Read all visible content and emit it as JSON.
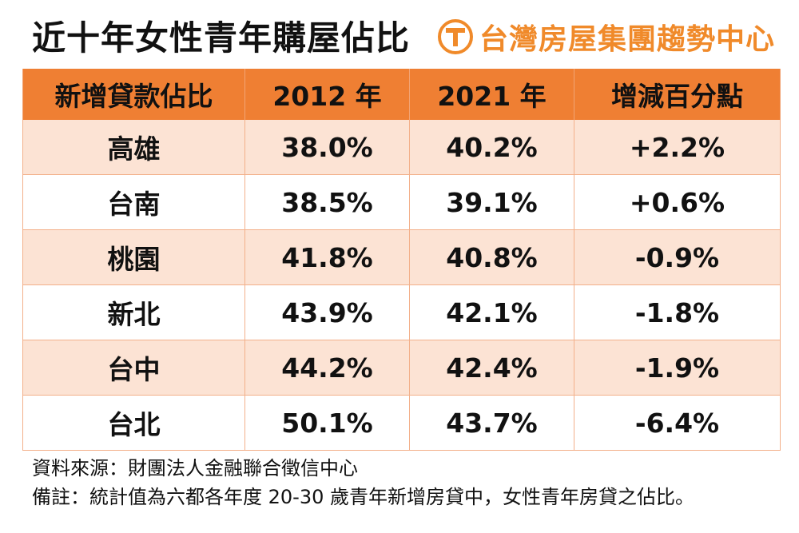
{
  "header": {
    "title": "近十年女性青年購屋佔比",
    "brand": "台灣房屋集團趨勢中心",
    "brand_icon": "t-circle-logo-icon",
    "brand_color": "#f08a2a"
  },
  "table": {
    "header_color": "#ef7f33",
    "stripe_color": "#fce3d4",
    "columns": [
      "新增貸款佔比",
      "2012 年",
      "2021 年",
      "增減百分點"
    ],
    "rows": [
      {
        "city": "高雄",
        "y2012": "38.0%",
        "y2021": "40.2%",
        "change": "+2.2%"
      },
      {
        "city": "台南",
        "y2012": "38.5%",
        "y2021": "39.1%",
        "change": "+0.6%"
      },
      {
        "city": "桃園",
        "y2012": "41.8%",
        "y2021": "40.8%",
        "change": "-0.9%"
      },
      {
        "city": "新北",
        "y2012": "43.9%",
        "y2021": "42.1%",
        "change": "-1.8%"
      },
      {
        "city": "台中",
        "y2012": "44.2%",
        "y2021": "42.4%",
        "change": "-1.9%"
      },
      {
        "city": "台北",
        "y2012": "50.1%",
        "y2021": "43.7%",
        "change": "-6.4%"
      }
    ]
  },
  "footnotes": {
    "source": "資料來源：財團法人金融聯合徵信中心",
    "remark": "備註：統計值為六都各年度 20-30 歲青年新增房貸中，女性青年房貸之佔比。"
  }
}
